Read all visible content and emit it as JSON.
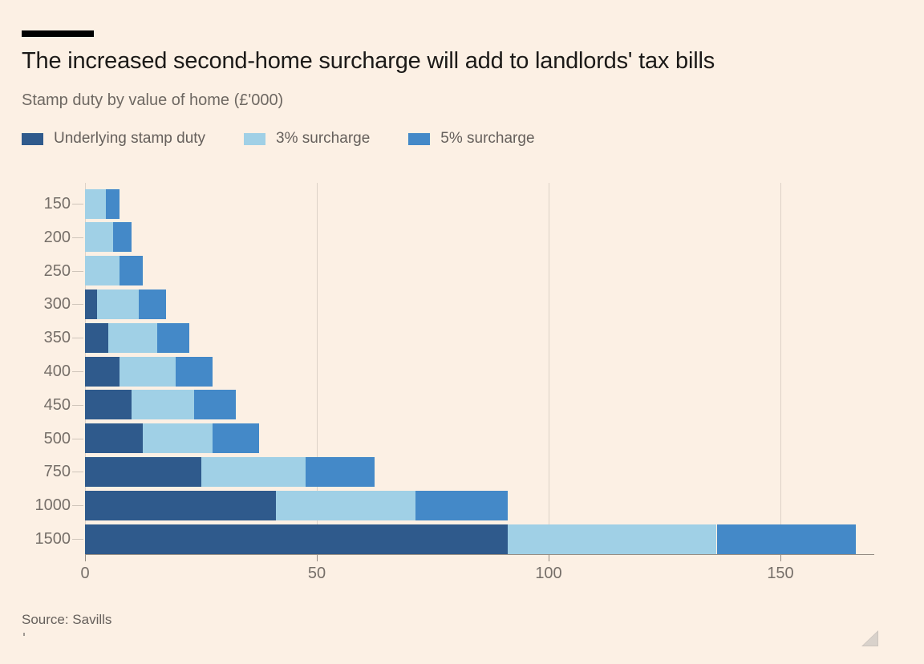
{
  "colors": {
    "background": "#fcf0e4",
    "kicker": "#000000",
    "title_text": "#1c1a18",
    "muted_text": "#6e6862",
    "legend_text": "#66605c",
    "axis_text": "#766f69",
    "gridline": "#ddd2c7",
    "axis_line": "#968d84",
    "y_tick": "#cfc5ba"
  },
  "chart_data": {
    "type": "bar",
    "orientation": "horizontal",
    "stacked": true,
    "title": "The increased second-home surcharge will add to landlords' tax bills",
    "subtitle": "Stamp duty by value of home (£'000)",
    "categories": [
      "150",
      "200",
      "250",
      "300",
      "350",
      "400",
      "450",
      "500",
      "750",
      "1000",
      "1500"
    ],
    "series": [
      {
        "name": "Underlying stamp duty",
        "color": "#2f5a8c",
        "values": [
          0,
          0,
          0,
          2.5,
          5,
          7.5,
          10,
          12.5,
          25,
          41.25,
          91.25
        ]
      },
      {
        "name": "3% surcharge",
        "color": "#a0d0e6",
        "values": [
          4.5,
          6,
          7.5,
          9,
          10.5,
          12,
          13.5,
          15,
          22.5,
          30,
          45
        ]
      },
      {
        "name": "5% surcharge",
        "color": "#4489c8",
        "values": [
          3,
          4,
          5,
          6,
          7,
          8,
          9,
          10,
          15,
          20,
          30
        ]
      }
    ],
    "totals": [
      7.5,
      10,
      12.5,
      17.5,
      22.5,
      27.5,
      32.5,
      37.5,
      62.5,
      91.25,
      166.25
    ],
    "x_ticks": [
      0,
      50,
      100,
      150
    ],
    "xlim": [
      0,
      166.25
    ],
    "grid": "vertical",
    "legend_position": "top"
  },
  "footer": {
    "source": "Source: Savills"
  }
}
